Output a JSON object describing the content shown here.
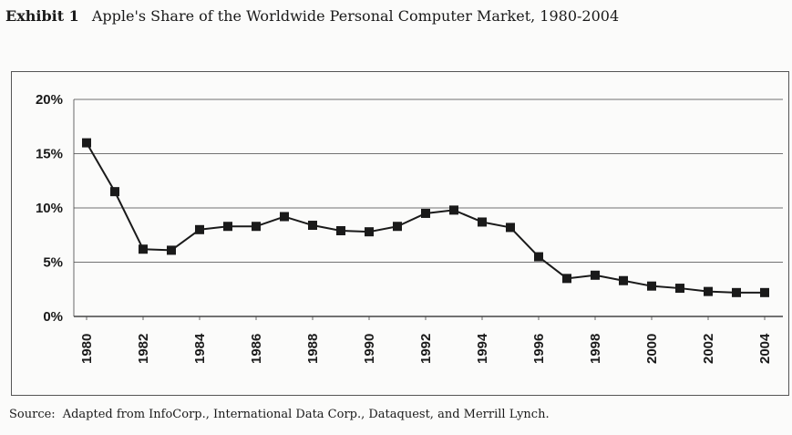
{
  "header": {
    "exhibit_label": "Exhibit 1",
    "title": "Apple's Share of the Worldwide Personal Computer Market, 1980-2004"
  },
  "footer": {
    "source_label": "Source:",
    "source_text": "Adapted from InfoCorp., International Data Corp., Dataquest, and Merrill Lynch."
  },
  "colors": {
    "line": "#1a1a1a",
    "grid": "#444444",
    "background": "#fbfbfa"
  },
  "chart_data": {
    "type": "line",
    "title": "Apple's Share of the Worldwide Personal Computer Market, 1980-2004",
    "xlabel": "",
    "ylabel": "",
    "x": [
      1980,
      1981,
      1982,
      1983,
      1984,
      1985,
      1986,
      1987,
      1988,
      1989,
      1990,
      1991,
      1992,
      1993,
      1994,
      1995,
      1996,
      1997,
      1998,
      1999,
      2000,
      2001,
      2002,
      2003,
      2004
    ],
    "series": [
      {
        "name": "",
        "values": [
          16.0,
          11.5,
          6.2,
          6.1,
          8.0,
          8.3,
          8.3,
          9.2,
          8.4,
          7.9,
          7.8,
          8.3,
          9.5,
          9.8,
          8.7,
          8.2,
          5.5,
          3.5,
          3.8,
          3.3,
          2.8,
          2.6,
          2.3,
          2.2,
          2.2
        ]
      }
    ],
    "xticks": [
      "1980",
      "1982",
      "1984",
      "1986",
      "1988",
      "1990",
      "1992",
      "1994",
      "1996",
      "1998",
      "2000",
      "2002",
      "2004"
    ],
    "yticks": [
      "0%",
      "5%",
      "10%",
      "15%",
      "20%"
    ],
    "ylim": [
      0,
      20
    ],
    "xlim": [
      1980,
      2004
    ],
    "grid": "horizontal",
    "legend": "none"
  }
}
